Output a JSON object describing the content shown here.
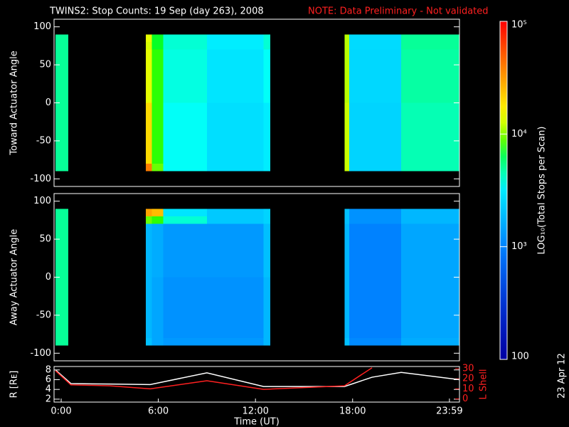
{
  "title": "TWINS2: Stop Counts: 19 Sep (day 263), 2008",
  "note": "NOTE: Data Preliminary - Not validated",
  "date_stamp": "23 Apr 12",
  "colorbar": {
    "label": "LOG₁₀(Total Stops per Scan)",
    "scale": "log",
    "lim": [
      100,
      100000
    ],
    "ticks": [
      100,
      {
        "value": 1000,
        "label": "10³"
      },
      {
        "value": 10000,
        "label": "10⁴"
      },
      {
        "value": 100000,
        "label": "10⁵"
      }
    ]
  },
  "chart_data": [
    {
      "type": "heatmap",
      "ylabel": "Toward Actuator Angle",
      "xlim": [
        -0.44,
        24.6
      ],
      "ylim": [
        -110,
        110
      ],
      "yticks": [
        -100,
        -50,
        0,
        50,
        100
      ],
      "x_bins": [
        -0.35,
        0.44,
        5.23,
        5.6,
        6.3,
        9,
        12.5,
        12.92,
        17.5,
        17.8,
        21,
        24.6
      ],
      "y_bins": [
        -90,
        -80,
        0,
        70,
        80,
        90
      ],
      "values": [
        [
          5000,
          null,
          40000,
          9000,
          3500,
          2800,
          3200,
          null,
          12000,
          2500,
          4500
        ],
        [
          5000,
          null,
          20000,
          8000,
          3500,
          2800,
          3200,
          null,
          12000,
          2500,
          4500
        ],
        [
          5000,
          null,
          14000,
          8000,
          3800,
          3000,
          3500,
          null,
          11000,
          2600,
          4800
        ],
        [
          5000,
          null,
          13000,
          7000,
          4000,
          3200,
          4000,
          null,
          11000,
          2700,
          5000
        ],
        [
          5000,
          null,
          14000,
          7000,
          4000,
          3200,
          4000,
          null,
          11000,
          2700,
          5000
        ]
      ]
    },
    {
      "type": "heatmap",
      "ylabel": "Away Actuator Angle",
      "xlim": [
        -0.44,
        24.6
      ],
      "ylim": [
        -110,
        110
      ],
      "yticks": [
        -100,
        -50,
        0,
        50,
        100
      ],
      "x_bins": [
        -0.35,
        0.44,
        5.23,
        5.6,
        6.3,
        9,
        12.5,
        12.92,
        17.5,
        17.8,
        21,
        24.6
      ],
      "y_bins": [
        -90,
        -80,
        0,
        70,
        80,
        90
      ],
      "values": [
        [
          5000,
          null,
          2000,
          1500,
          1300,
          1300,
          1800,
          null,
          2000,
          1100,
          1600
        ],
        [
          5000,
          null,
          1800,
          1500,
          1200,
          1200,
          1800,
          null,
          1800,
          1000,
          1500
        ],
        [
          5000,
          null,
          1800,
          1600,
          1300,
          1300,
          2000,
          null,
          1800,
          1000,
          1500
        ],
        [
          5000,
          null,
          9000,
          8000,
          4000,
          2200,
          2500,
          null,
          2000,
          1200,
          1800
        ],
        [
          5000,
          null,
          30000,
          25000,
          3000,
          2200,
          2500,
          null,
          2000,
          1200,
          1800
        ]
      ]
    },
    {
      "type": "line",
      "xlabel": "Time (UT)",
      "ylabel": "R [Rᴇ]",
      "y2label": "L Shell",
      "xlim": [
        -0.44,
        24.6
      ],
      "xticks": [
        {
          "value": 0,
          "label": "0:00"
        },
        {
          "value": 6,
          "label": "6:00"
        },
        {
          "value": 12,
          "label": "12:00"
        },
        {
          "value": 18,
          "label": "18:00"
        },
        {
          "value": 23.98,
          "label": "23:59"
        }
      ],
      "ylim": [
        1.4,
        8.7
      ],
      "yticks": [
        2,
        4,
        6,
        8
      ],
      "y2lim": [
        -3.2,
        32.2
      ],
      "y2ticks": [
        0,
        10,
        20,
        30
      ],
      "x": [
        -0.35,
        0.6,
        3,
        5.5,
        9,
        12.5,
        17.5,
        19.2,
        21,
        24.6
      ],
      "series": [
        {
          "name": "R",
          "color": "#ffffff",
          "values": [
            8,
            5.2,
            5.1,
            5,
            7.4,
            4.6,
            4.6,
            6.5,
            7.5,
            6
          ]
        },
        {
          "name": "L Shell",
          "color": "#ff2020",
          "axis": "y2",
          "values": [
            28,
            14,
            13,
            10,
            18,
            9.5,
            13,
            31,
            null,
            null
          ]
        }
      ]
    }
  ]
}
